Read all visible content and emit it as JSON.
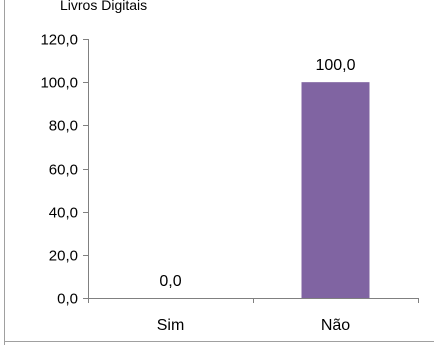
{
  "chart_data": {
    "type": "bar",
    "title": "Livros Digitais",
    "categories": [
      "Sim",
      "Não"
    ],
    "values": [
      0.0,
      100.0
    ],
    "value_labels": [
      "0,0",
      "100,0"
    ],
    "ylim": [
      0,
      120
    ],
    "ytick_values": [
      0,
      20,
      40,
      60,
      80,
      100,
      120
    ],
    "ytick_labels": [
      "0,0",
      "20,0",
      "40,0",
      "60,0",
      "80,0",
      "100,0",
      "120,0"
    ],
    "xlabel": "",
    "ylabel": "",
    "grid": false,
    "legend": "none",
    "bar_color": "#8064A2"
  }
}
